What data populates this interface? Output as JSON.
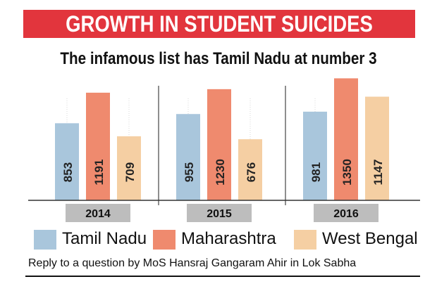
{
  "header": {
    "title": "GROWTH IN STUDENT SUICIDES",
    "subtitle": "The infamous list has Tamil Nadu at number 3"
  },
  "colors": {
    "banner": "#e2353d",
    "tamil_nadu": "#a9c6dc",
    "maharashtra": "#ef8a6e",
    "west_bengal": "#f5cfa3",
    "year_tab": "#bdbdbd"
  },
  "chart_data": {
    "type": "bar",
    "title": "GROWTH IN STUDENT SUICIDES",
    "subtitle": "The infamous list has Tamil Nadu at number 3",
    "categories": [
      "2014",
      "2015",
      "2016"
    ],
    "series": [
      {
        "name": "Tamil Nadu",
        "values": [
          853,
          955,
          981
        ]
      },
      {
        "name": "Maharashtra",
        "values": [
          1191,
          1230,
          1350
        ]
      },
      {
        "name": "West Bengal",
        "values": [
          709,
          676,
          1147
        ]
      }
    ],
    "ylim": [
      0,
      1400
    ],
    "grid": false,
    "legend": "bottom"
  },
  "legend": {
    "items": [
      "Tamil Nadu",
      "Maharashtra",
      "West Bengal"
    ]
  },
  "footnote": "Reply to a question by MoS Hansraj Gangaram Ahir in Lok Sabha"
}
